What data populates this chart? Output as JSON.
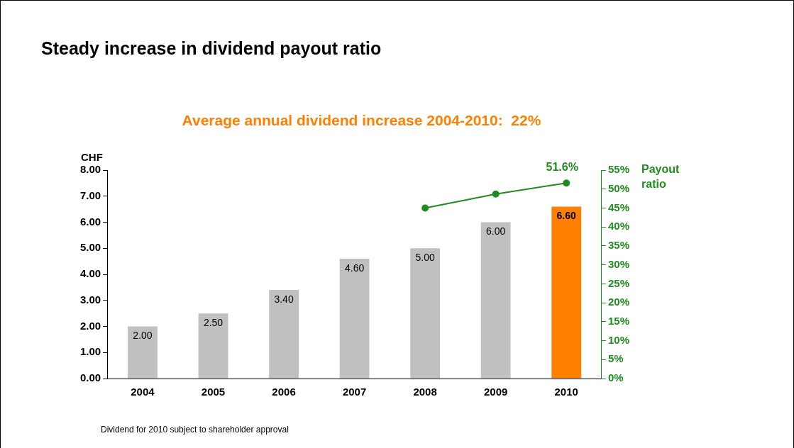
{
  "chart_data": {
    "type": "bar",
    "title": "Steady increase in dividend payout ratio",
    "subtitle": "Average annual dividend increase 2004-2010:  22%",
    "ylabel": "CHF",
    "y2label": "Payout ratio",
    "categories": [
      "2004",
      "2005",
      "2006",
      "2007",
      "2008",
      "2009",
      "2010"
    ],
    "series": [
      {
        "colors": [
          "#c0c0c0",
          "#c0c0c0",
          "#c0c0c0",
          "#c0c0c0",
          "#c0c0c0",
          "#c0c0c0",
          "#ff8000"
        ],
        "values": [
          2.0,
          2.5,
          3.4,
          4.6,
          5.0,
          6.0,
          6.6
        ],
        "value_labels": [
          "2.00",
          "2.50",
          "3.40",
          "4.60",
          "5.00",
          "6.00",
          "6.60"
        ]
      },
      {
        "type": "line",
        "axis": "y2",
        "color": "#1e8c1e",
        "values": [
          null,
          null,
          null,
          null,
          45,
          48.7,
          51.6
        ],
        "value_labels": [
          null,
          null,
          null,
          null,
          null,
          null,
          "51.6%"
        ]
      }
    ],
    "ylim": [
      0,
      8
    ],
    "yticks": [
      {
        "value": 0,
        "label": "0.00"
      },
      {
        "value": 1,
        "label": "1.00"
      },
      {
        "value": 2,
        "label": "2.00"
      },
      {
        "value": 3,
        "label": "3.00"
      },
      {
        "value": 4,
        "label": "4.00"
      },
      {
        "value": 5,
        "label": "5.00"
      },
      {
        "value": 6,
        "label": "6.00"
      },
      {
        "value": 7,
        "label": "7.00"
      },
      {
        "value": 8,
        "label": "8.00"
      }
    ],
    "y2lim": [
      0,
      55
    ],
    "y2ticks": [
      {
        "value": 0,
        "label": "0%"
      },
      {
        "value": 5,
        "label": "5%"
      },
      {
        "value": 10,
        "label": "10%"
      },
      {
        "value": 15,
        "label": "15%"
      },
      {
        "value": 20,
        "label": "20%"
      },
      {
        "value": 25,
        "label": "25%"
      },
      {
        "value": 30,
        "label": "30%"
      },
      {
        "value": 35,
        "label": "35%"
      },
      {
        "value": 40,
        "label": "40%"
      },
      {
        "value": 45,
        "label": "45%"
      },
      {
        "value": 50,
        "label": "50%"
      },
      {
        "value": 55,
        "label": "55%"
      }
    ],
    "grid": false,
    "legend": false,
    "marker": "circle",
    "line_style": "solid",
    "annotations": [
      "Dividend for 2010 subject to shareholder approval"
    ]
  }
}
